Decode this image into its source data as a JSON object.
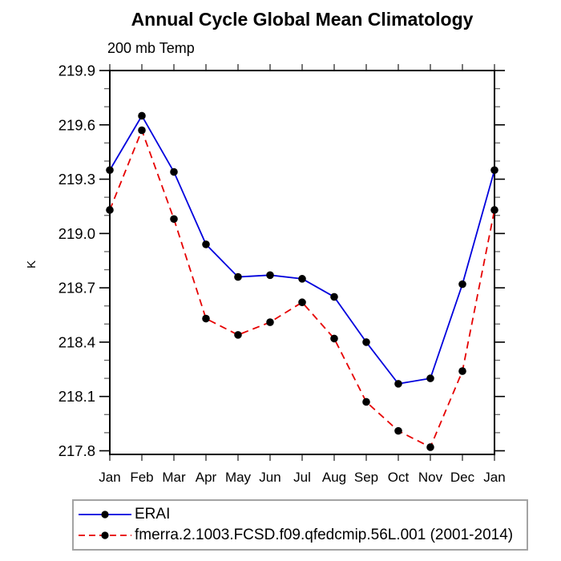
{
  "title": "Annual Cycle Global Mean Climatology",
  "subtitle": "200 mb Temp",
  "chart_data": {
    "type": "line",
    "ylabel": "K",
    "categories": [
      "Jan",
      "Feb",
      "Mar",
      "Apr",
      "May",
      "Jun",
      "Jul",
      "Aug",
      "Sep",
      "Oct",
      "Nov",
      "Dec",
      "Jan"
    ],
    "series": [
      {
        "name": "ERAI",
        "line_color": "#0000dd",
        "line_style": "solid",
        "marker": "circle",
        "marker_color": "#000000",
        "values": [
          219.35,
          219.65,
          219.34,
          218.94,
          218.76,
          218.77,
          218.75,
          218.65,
          218.4,
          218.17,
          218.2,
          218.72,
          219.35
        ]
      },
      {
        "name": "fmerra.2.1003.FCSD.f09.qfedcmip.56L.001 (2001-2014)",
        "line_color": "#e60000",
        "line_style": "dashed",
        "marker": "circle",
        "marker_color": "#000000",
        "values": [
          219.13,
          219.57,
          219.08,
          218.53,
          218.44,
          218.51,
          218.62,
          218.42,
          218.07,
          217.91,
          217.82,
          218.24,
          219.13
        ]
      }
    ],
    "ylim": [
      217.78,
      219.9
    ],
    "ytick_major_step": 0.3,
    "ytick_minor_step": 0.1,
    "ytick_labels": [
      "217.8",
      "218.1",
      "218.4",
      "218.7",
      "219.0",
      "219.3",
      "219.6",
      "219.9"
    ],
    "grid": false,
    "legend_position": "bottom-left",
    "axis_color": "#000000",
    "major_tick_color": "#000000",
    "minor_tick_color": "#666666",
    "month_tick_color": "#555555",
    "legend_border_color": "#a3a3a3"
  }
}
